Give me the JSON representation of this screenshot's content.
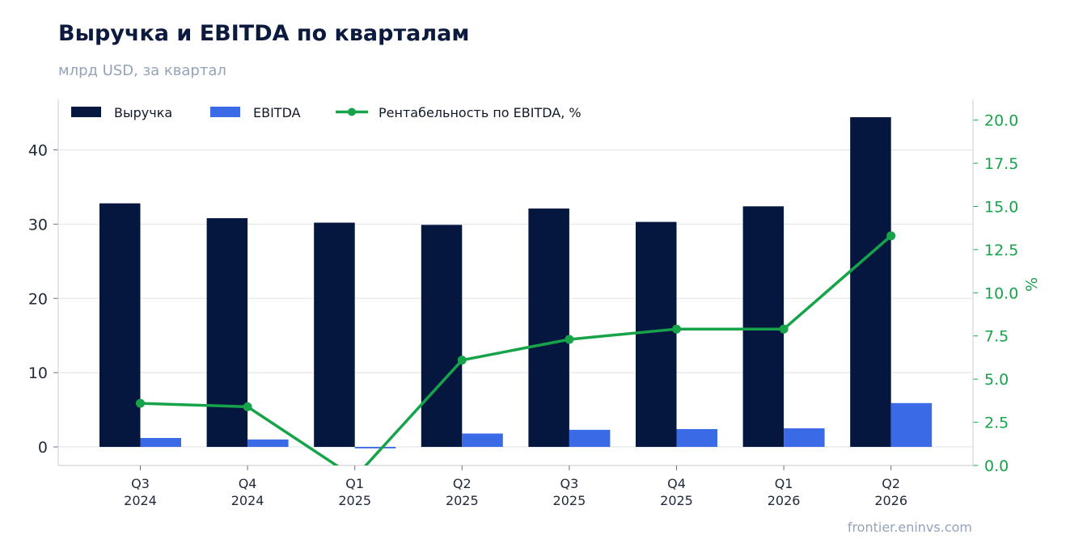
{
  "header": {
    "title": "Выручка и EBITDA по кварталам",
    "subtitle": "млрд USD, за квартал"
  },
  "footer": {
    "watermark": "frontier.eninvs.com"
  },
  "colors": {
    "revenue": "#05163f",
    "ebitda": "#3b6ae6",
    "margin": "#16a34a",
    "grid": "#e5e7eb",
    "axis": "#d1d5db"
  },
  "chart_data": {
    "type": "bar",
    "categories": [
      [
        "Q3",
        "2024"
      ],
      [
        "Q4",
        "2024"
      ],
      [
        "Q1",
        "2025"
      ],
      [
        "Q2",
        "2025"
      ],
      [
        "Q3",
        "2025"
      ],
      [
        "Q4",
        "2025"
      ],
      [
        "Q1",
        "2026"
      ],
      [
        "Q2",
        "2026"
      ]
    ],
    "series": [
      {
        "name": "Выручка",
        "type": "bar",
        "axis": "left",
        "values": [
          32.8,
          30.8,
          30.2,
          29.9,
          32.1,
          30.3,
          32.4,
          44.4
        ]
      },
      {
        "name": "EBITDA",
        "type": "bar",
        "axis": "left",
        "values": [
          1.2,
          1.0,
          -0.2,
          1.8,
          2.3,
          2.4,
          2.5,
          5.9
        ]
      },
      {
        "name": "Рентабельность по EBITDA, %",
        "type": "line",
        "axis": "right",
        "values": [
          3.6,
          3.4,
          -0.7,
          6.1,
          7.3,
          7.9,
          7.9,
          13.3
        ]
      }
    ],
    "y_left": {
      "ticks": [
        0,
        10,
        20,
        30,
        40
      ],
      "range": [
        -2.5,
        46.8
      ]
    },
    "y_right": {
      "label": "%",
      "ticks": [
        "0.0",
        "2.5",
        "5.0",
        "7.5",
        "10.0",
        "12.5",
        "15.0",
        "17.5",
        "20.0"
      ],
      "range": [
        0,
        21.2
      ]
    },
    "grid": true,
    "legend_position": "top-left"
  }
}
